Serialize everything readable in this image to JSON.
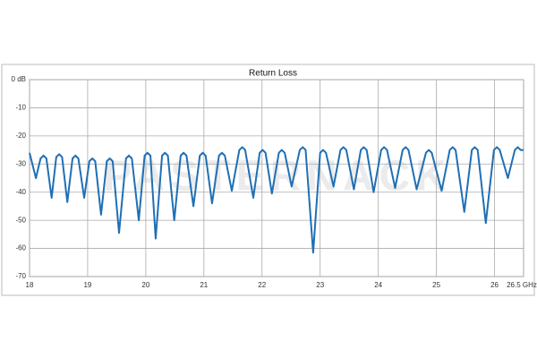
{
  "chart_data": {
    "type": "line",
    "title": "Return Loss",
    "watermark": "PASTERNACK",
    "x": [
      18,
      18.11,
      18.19,
      18.24,
      18.29,
      18.38,
      18.46,
      18.51,
      18.56,
      18.65,
      18.74,
      18.79,
      18.84,
      18.94,
      19.03,
      19.08,
      19.13,
      19.23,
      19.33,
      19.38,
      19.43,
      19.54,
      19.66,
      19.71,
      19.76,
      19.88,
      19.98,
      20.03,
      20.08,
      20.17,
      20.28,
      20.33,
      20.38,
      20.49,
      20.6,
      20.65,
      20.7,
      20.82,
      20.93,
      20.98,
      21.03,
      21.14,
      21.26,
      21.31,
      21.36,
      21.48,
      21.61,
      21.66,
      21.71,
      21.85,
      21.96,
      22.01,
      22.06,
      22.17,
      22.29,
      22.34,
      22.39,
      22.51,
      22.65,
      22.7,
      22.75,
      22.88,
      23,
      23.05,
      23.1,
      23.23,
      23.35,
      23.4,
      23.45,
      23.58,
      23.7,
      23.75,
      23.8,
      23.92,
      24.05,
      24.1,
      24.15,
      24.29,
      24.42,
      24.47,
      24.52,
      24.66,
      24.82,
      24.87,
      24.92,
      25.09,
      25.23,
      25.28,
      25.33,
      25.48,
      25.61,
      25.66,
      25.71,
      25.85,
      25.99,
      26.04,
      26.09,
      26.23,
      26.35,
      26.4,
      26.45,
      26.5
    ],
    "series": [
      {
        "name": "Return Loss",
        "color": "#1f6fb5",
        "values": [
          -26,
          -35,
          -28,
          -27,
          -28,
          -42,
          -27.5,
          -26.5,
          -27.5,
          -43.5,
          -28,
          -27,
          -28,
          -42,
          -29,
          -28,
          -29,
          -48,
          -29,
          -28,
          -29,
          -54.5,
          -28,
          -27,
          -28,
          -50,
          -27,
          -26,
          -27,
          -56.5,
          -27,
          -26,
          -27,
          -50,
          -27,
          -26,
          -27,
          -45,
          -27,
          -26,
          -27,
          -44,
          -27,
          -26,
          -27,
          -39.5,
          -25,
          -24,
          -25,
          -42,
          -26,
          -25,
          -26,
          -40.5,
          -26,
          -25,
          -26,
          -38,
          -25,
          -24,
          -25,
          -61.5,
          -26,
          -25,
          -26,
          -38,
          -25,
          -24,
          -25,
          -39,
          -25,
          -24,
          -25,
          -40,
          -25,
          -24,
          -25,
          -38.5,
          -25,
          -24,
          -25,
          -39,
          -26,
          -25,
          -26,
          -39.5,
          -25,
          -24,
          -25,
          -47,
          -25,
          -24,
          -25,
          -51,
          -25,
          -24,
          -25,
          -35,
          -25,
          -24,
          -25,
          -25
        ]
      }
    ],
    "xlim": [
      18,
      26.5
    ],
    "ylim": [
      -70,
      0
    ],
    "xticks": [
      18,
      19,
      20,
      21,
      22,
      23,
      24,
      25,
      26,
      {
        "value": 26.5,
        "label": "26.5 GHz"
      }
    ],
    "yticks": [
      {
        "value": 0,
        "label": "0 dB"
      },
      -10,
      -20,
      -30,
      -40,
      -50,
      -60,
      -70
    ],
    "grid": true
  }
}
